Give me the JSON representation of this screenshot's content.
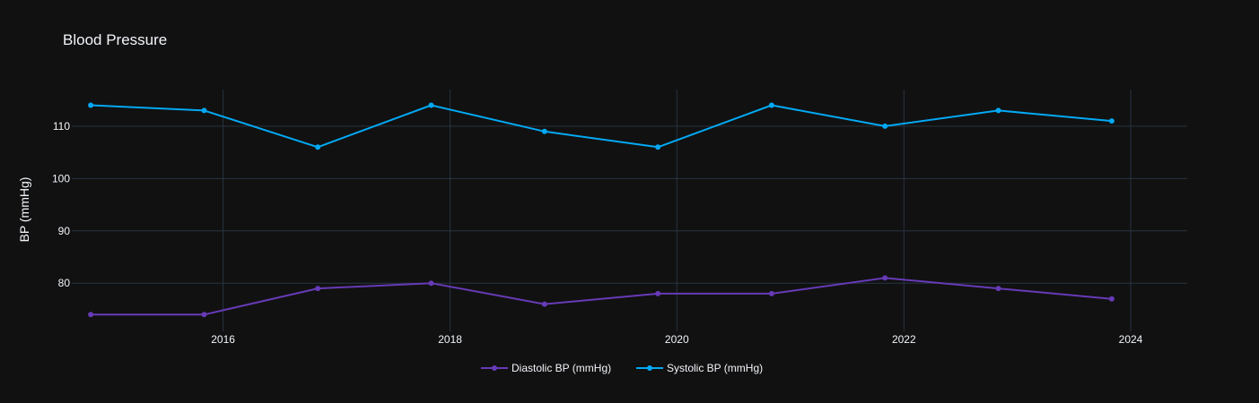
{
  "chart_data": {
    "type": "line",
    "title": "Blood Pressure",
    "xlabel": "",
    "ylabel": "BP (mmHg)",
    "x_tick_labels": [
      "2016",
      "2018",
      "2020",
      "2022",
      "2024"
    ],
    "y_tick_labels": [
      "80",
      "90",
      "100",
      "110"
    ],
    "xlim": [
      "2014-09-01",
      "2024-07-01"
    ],
    "ylim": [
      70.8,
      117.0
    ],
    "grid": true,
    "legend_position": "bottom-center",
    "x": [
      "2014-11-01",
      "2015-11-01",
      "2016-11-01",
      "2017-11-01",
      "2018-11-01",
      "2019-11-01",
      "2020-11-01",
      "2021-11-01",
      "2022-11-01",
      "2023-11-01"
    ],
    "series": [
      {
        "name": "Diastolic BP (mmHg)",
        "color": "#673ab7",
        "values": [
          74,
          74,
          79,
          80,
          76,
          78,
          78,
          81,
          79,
          77
        ]
      },
      {
        "name": "Systolic BP (mmHg)",
        "color": "#03a9f4",
        "values": [
          114,
          113,
          106,
          114,
          109,
          106,
          114,
          110,
          113,
          111
        ]
      }
    ],
    "colors": {
      "background": "#111111",
      "grid": "#283442",
      "text": "#f2f5fa"
    }
  }
}
